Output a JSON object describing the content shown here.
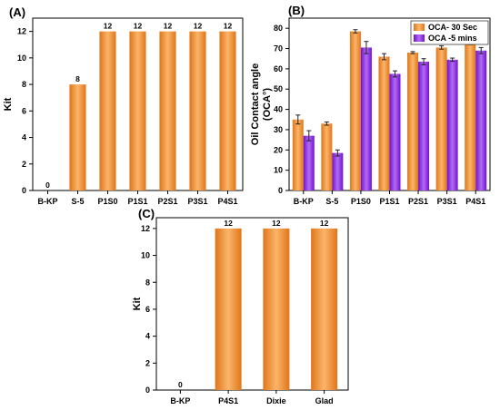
{
  "colors": {
    "orange": "#f08a24",
    "orange_light": "#fbb56a",
    "purple": "#8a12e8",
    "purple_light": "#b06cf5"
  },
  "chart_data": [
    {
      "panel": "(A)",
      "type": "bar",
      "categories": [
        "B-KP",
        "S-5",
        "P1S0",
        "P1S1",
        "P2S1",
        "P3S1",
        "P4S1"
      ],
      "values": [
        0,
        8,
        12,
        12,
        12,
        12,
        12
      ],
      "data_labels": [
        "0",
        "8",
        "12",
        "12",
        "12",
        "12",
        "12"
      ],
      "ylabel": "Kit",
      "ylim": [
        0,
        13
      ],
      "yticks": [
        0,
        2,
        4,
        6,
        8,
        10,
        12
      ],
      "grid": false
    },
    {
      "panel": "(B)",
      "type": "bar",
      "categories": [
        "B-KP",
        "S-5",
        "P1S0",
        "P1S1",
        "P2S1",
        "P3S1",
        "P4S1"
      ],
      "series": [
        {
          "name": "OCA- 30 Sec",
          "values": [
            35,
            33,
            78.5,
            66,
            68,
            70.5,
            75
          ],
          "errors": [
            2.2,
            0.8,
            0.8,
            1.5,
            0.5,
            0.8,
            3
          ]
        },
        {
          "name": "OCA -5 mins",
          "values": [
            27,
            18.5,
            70.5,
            57.5,
            63.5,
            64.5,
            69
          ],
          "errors": [
            2.5,
            1.5,
            3,
            1.5,
            1.5,
            0.8,
            1.5
          ]
        }
      ],
      "ylabel": "Oil Contact angle",
      "ylabel_sub": "(OCA°)",
      "ylim": [
        0,
        85
      ],
      "yticks": [
        0,
        10,
        20,
        30,
        40,
        50,
        60,
        70,
        80
      ],
      "legend": "top-right",
      "grid": false
    },
    {
      "panel": "(C)",
      "type": "bar",
      "categories": [
        "B-KP",
        "P4S1",
        "Dixie",
        "Glad"
      ],
      "values": [
        0,
        12,
        12,
        12
      ],
      "data_labels": [
        "0",
        "12",
        "12",
        "12"
      ],
      "ylabel": "Kit",
      "ylim": [
        0,
        12.8
      ],
      "yticks": [
        0,
        2,
        4,
        6,
        8,
        10,
        12
      ],
      "grid": false
    }
  ]
}
